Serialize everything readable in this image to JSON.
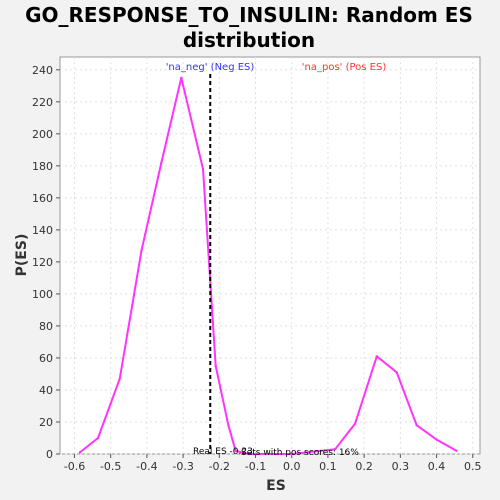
{
  "chart_data": {
    "type": "line",
    "title": "GO_RESPONSE_TO_INSULIN: Random ES distribution",
    "title_lines": [
      "GO_RESPONSE_TO_INSULIN: Random ES",
      "distribution"
    ],
    "xlabel": "ES",
    "ylabel": "P(ES)",
    "xlim": [
      -0.64,
      0.52
    ],
    "ylim": [
      0,
      248
    ],
    "x_ticks": [
      -0.6,
      -0.5,
      -0.4,
      -0.3,
      -0.2,
      -0.1,
      0.0,
      0.1,
      0.2,
      0.3,
      0.4,
      0.5
    ],
    "x_tick_labels": [
      "-0.6",
      "-0.5",
      "-0.4",
      "-0.3",
      "-0.2",
      "-0.1",
      "0.0",
      "0.1",
      "0.2",
      "0.3",
      "0.4",
      "0.5"
    ],
    "y_ticks": [
      0,
      20,
      40,
      60,
      80,
      100,
      120,
      140,
      160,
      180,
      200,
      220,
      240
    ],
    "y_tick_labels": [
      "0",
      "20",
      "40",
      "60",
      "80",
      "100",
      "120",
      "140",
      "160",
      "180",
      "200",
      "220",
      "240"
    ],
    "grid": true,
    "series": [
      {
        "color": "#ff33ff",
        "x": [
          -0.585,
          -0.535,
          -0.475,
          -0.415,
          -0.36,
          -0.305,
          -0.245,
          -0.21,
          -0.175,
          -0.155,
          -0.12,
          0.0,
          0.12,
          0.175,
          0.235,
          0.29,
          0.345,
          0.4,
          0.455
        ],
        "y": [
          1,
          10,
          47,
          127,
          182,
          235,
          178,
          55,
          18,
          2,
          0,
          0,
          3,
          19,
          61,
          51,
          18,
          9,
          2
        ]
      }
    ],
    "real_es": -0.225,
    "annotations": {
      "neg_label": "'na_neg' (Neg ES)",
      "pos_label": "'na_pos' (Pos ES)",
      "bottom_label": "Real ES -0.23",
      "bottom_label2": "Sets with pos scores: 16%"
    },
    "colors": {
      "background": "#f2f2f2",
      "plot_bg": "#ffffff",
      "line": "#ff33ff",
      "neg": "#3333ff",
      "pos": "#ff3333",
      "marker": "#000000"
    }
  }
}
